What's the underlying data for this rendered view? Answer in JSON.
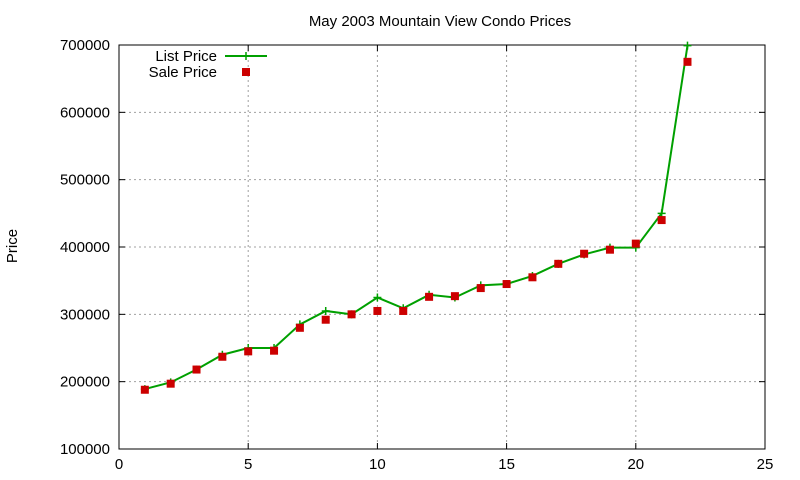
{
  "chart_data": {
    "type": "line",
    "title": "May 2003 Mountain View Condo Prices",
    "xlabel": "",
    "ylabel": "Price",
    "xlim": [
      0,
      25
    ],
    "ylim": [
      100000,
      700000
    ],
    "xticks": [
      "0",
      "5",
      "10",
      "15",
      "20",
      "25"
    ],
    "yticks": [
      "100000",
      "200000",
      "300000",
      "400000",
      "500000",
      "600000",
      "700000"
    ],
    "grid": true,
    "legend_position": "top-left",
    "series": [
      {
        "name": "List Price",
        "style": "line-plus",
        "color": "#00a000",
        "x": [
          1,
          2,
          3,
          4,
          5,
          6,
          7,
          8,
          9,
          10,
          11,
          12,
          13,
          14,
          15,
          16,
          17,
          18,
          19,
          20,
          21,
          22
        ],
        "y": [
          189000,
          199000,
          218000,
          240000,
          250000,
          250000,
          285000,
          305000,
          300000,
          325000,
          309000,
          329000,
          325000,
          343000,
          345000,
          357000,
          375000,
          389000,
          399000,
          399000,
          450000,
          699000
        ]
      },
      {
        "name": "Sale Price",
        "style": "square",
        "color": "#cc0000",
        "x": [
          1,
          2,
          3,
          4,
          5,
          6,
          7,
          8,
          9,
          10,
          11,
          12,
          13,
          14,
          15,
          16,
          17,
          18,
          19,
          20,
          21,
          22
        ],
        "y": [
          188000,
          197000,
          218000,
          237000,
          245000,
          246000,
          280000,
          292000,
          300000,
          305000,
          305000,
          326000,
          327000,
          339000,
          345000,
          355000,
          375000,
          390000,
          396000,
          405000,
          440000,
          675000
        ]
      }
    ]
  }
}
